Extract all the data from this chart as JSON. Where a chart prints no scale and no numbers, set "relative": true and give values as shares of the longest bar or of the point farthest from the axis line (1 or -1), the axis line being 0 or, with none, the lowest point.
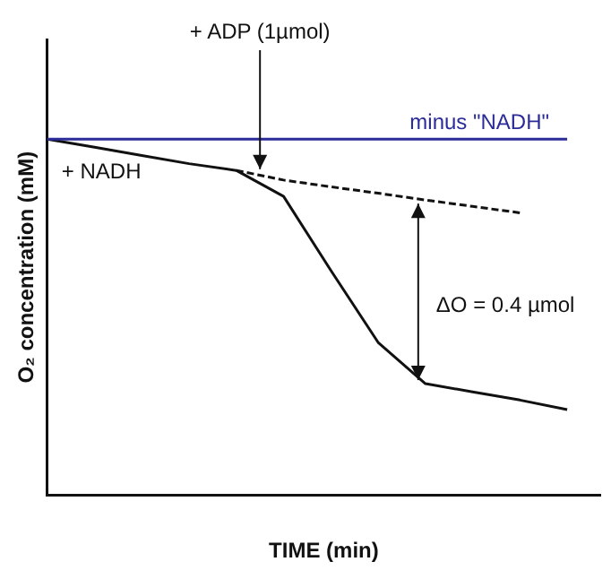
{
  "chart_data": {
    "type": "line",
    "relative": true,
    "xlabel": "TIME (min)",
    "ylabel": "O₂ concentration (mM)",
    "categories": [
      null,
      null,
      null,
      null,
      null,
      null,
      null,
      null,
      null,
      null,
      null,
      null
    ],
    "series": [
      {
        "name": "minus \"NADH\"",
        "color": "#2b2b9a",
        "values": [
          1,
          1,
          1,
          1,
          1,
          1,
          1,
          1,
          1,
          1,
          1,
          1
        ]
      },
      {
        "color": "#111111",
        "values": [
          1,
          0.977,
          0.954,
          0.931,
          0.912,
          0.839,
          0.631,
          0.429,
          0.313,
          0.29,
          0.267,
          0.24
        ]
      },
      {
        "color": "#111111",
        "line_style": "dashed",
        "values": [
          null,
          null,
          null,
          null,
          0.912,
          0.885,
          0.866,
          0.848,
          0.829,
          0.811,
          0.793,
          null
        ]
      }
    ],
    "annotations": [
      "+ ADP (1µmol)",
      "+ NADH",
      "ΔO = 0.4 µmol"
    ],
    "grid": false,
    "legend": false,
    "marker": "none"
  }
}
